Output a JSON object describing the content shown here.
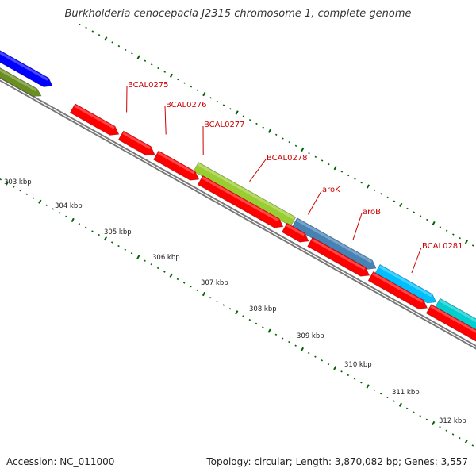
{
  "title": "Burkholderia cenocepacia J2315 chromosome 1, complete genome",
  "footer": {
    "accession": "Accession: NC_011000",
    "summary": "Topology: circular; Length: 3,870,082 bp; Genes: 3,557"
  },
  "map": {
    "axis_unit": "kbp",
    "axis_labels": [
      "303 kbp",
      "304 kbp",
      "305 kbp",
      "306 kbp",
      "307 kbp",
      "308 kbp",
      "309 kbp",
      "310 kbp",
      "311 kbp",
      "312 kbp"
    ],
    "gene_labels": [
      "BCAL0275",
      "BCAL0276",
      "BCAL0277",
      "BCAL0278",
      "aroK",
      "aroB",
      "BCAL0281"
    ],
    "colors": {
      "cds_red": "#ff0000",
      "cds_blue": "#0000ff",
      "cds_olive": "#6b8e23",
      "cds_lime": "#9acd32",
      "cds_steelblue": "#4682b4",
      "cds_deepskyblue": "#00bfff",
      "cds_cyan": "#00ced1",
      "backbone": "#777777",
      "ticks": "#006400",
      "gene_label": "#cc0000"
    }
  }
}
